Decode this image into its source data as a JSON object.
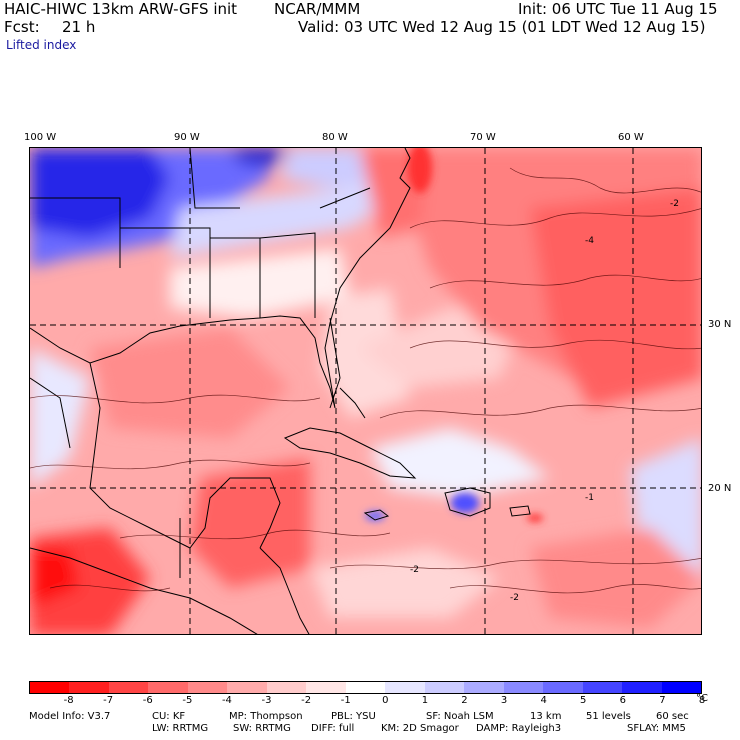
{
  "header": {
    "model_title": "HAIC-HIWC 13km ARW-GFS init",
    "org": "NCAR/MMM",
    "init": "Init: 06 UTC Tue 11 Aug 15",
    "fcst_label": "Fcst:",
    "fcst_value": "21 h",
    "valid": "Valid: 03 UTC Wed 12 Aug 15 (01 LDT Wed 12 Aug 15)",
    "field": "Lifted index"
  },
  "map": {
    "lon_labels": [
      "100 W",
      "90 W",
      "80 W",
      "70 W",
      "60 W"
    ],
    "lat_labels": [
      "30 N",
      "20 N"
    ],
    "contour_labels": [
      "-2",
      "-4",
      "-2",
      "-2",
      "-1"
    ]
  },
  "colorbar": {
    "colors": [
      "#ff0000",
      "#ff2020",
      "#ff4545",
      "#ff6a6a",
      "#ff8a8a",
      "#ffabab",
      "#ffcccc",
      "#ffe6e6",
      "#ffffff",
      "#e6e6ff",
      "#ccccff",
      "#ababff",
      "#8a8aff",
      "#6a6aff",
      "#4545ff",
      "#2020ff",
      "#0000ff"
    ],
    "ticks": [
      "-8",
      "-7",
      "-6",
      "-5",
      "-4",
      "-3",
      "-2",
      "-1",
      "0",
      "1",
      "2",
      "3",
      "4",
      "5",
      "6",
      "7",
      "8"
    ],
    "unit": "°C"
  },
  "footer": {
    "line1": {
      "model_info": "Model Info: V3.7",
      "cu": "CU: KF",
      "mp": "MP: Thompson",
      "pbl": "PBL: YSU",
      "sf": "SF: Noah LSM",
      "res": "13 km",
      "levels": "51 levels",
      "dt": "60 sec"
    },
    "line2": {
      "lw": "LW: RRTMG",
      "sw": "SW: RRTMG",
      "diff": "DIFF: full",
      "km": "KM: 2D Smagor",
      "damp": "DAMP: Rayleigh3",
      "sflay": "SFLAY: MM5"
    }
  }
}
